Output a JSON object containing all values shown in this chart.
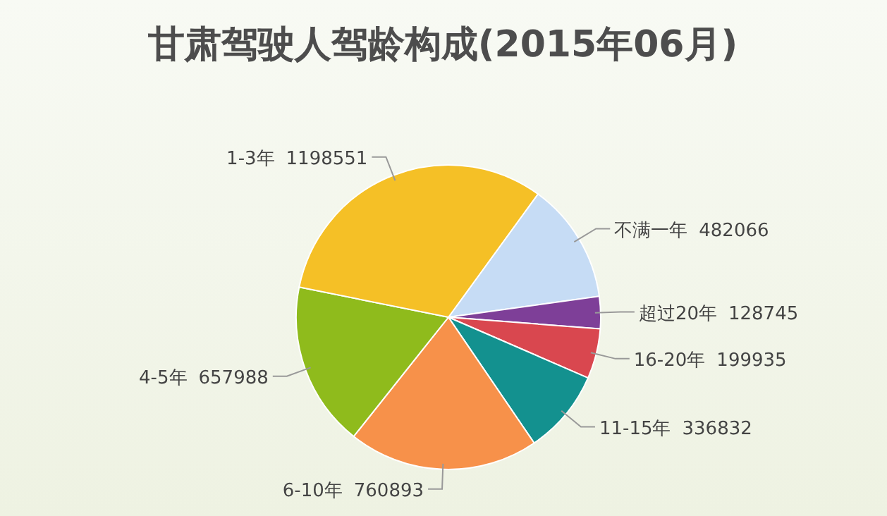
{
  "chart_data": {
    "type": "pie",
    "title": "甘肃驾驶人驾龄构成(2015年06月)",
    "categories": [
      "不满一年",
      "超过20年",
      "16-20年",
      "11-15年",
      "6-10年",
      "4-5年",
      "1-3年"
    ],
    "values": [
      482066,
      128745,
      199935,
      336832,
      760893,
      657988,
      1198551
    ],
    "colors": [
      "#c6dcf5",
      "#7e3f98",
      "#d9474f",
      "#13918f",
      "#f7914a",
      "#8fbb1c",
      "#f5c026"
    ],
    "data_labels": true
  }
}
